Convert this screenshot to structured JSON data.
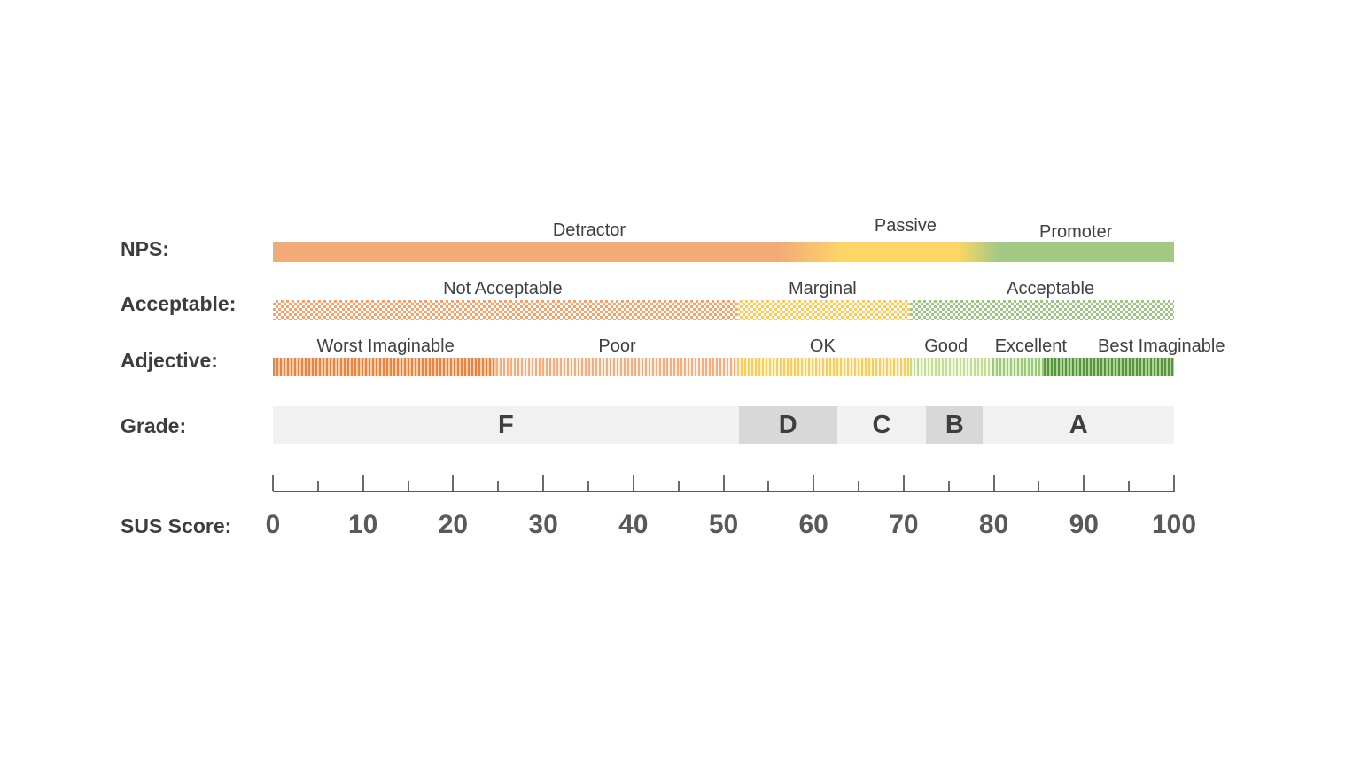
{
  "page": {
    "background": "#ffffff",
    "label_color": "#3d3d3d",
    "band_label_color": "#404040",
    "tick_text_color": "#595959"
  },
  "axis": {
    "label": "SUS Score:",
    "min": 0,
    "max": 100,
    "minor_step": 5,
    "major_step": 10,
    "tick_labels": [
      "0",
      "10",
      "20",
      "30",
      "40",
      "50",
      "60",
      "70",
      "80",
      "90",
      "100"
    ]
  },
  "rows": [
    {
      "key": "nps",
      "label": "NPS:",
      "type": "gradient",
      "gradient_stops": [
        {
          "color": "#F3AA79",
          "at": 0
        },
        {
          "color": "#F3AA79",
          "at": 56
        },
        {
          "color": "#FCD766",
          "at": 63.5
        },
        {
          "color": "#FCD766",
          "at": 76
        },
        {
          "color": "#A2C983",
          "at": 80.5
        },
        {
          "color": "#A2C983",
          "at": 100
        }
      ],
      "bands": [
        {
          "label": "Detractor",
          "from": 0,
          "to": 60,
          "label_at": 35.1,
          "dy": 0
        },
        {
          "label": "Passive",
          "from": 60,
          "to": 78,
          "label_at": 70.2,
          "dy": -5
        },
        {
          "label": "Promoter",
          "from": 78,
          "to": 100,
          "label_at": 89.1,
          "dy": 2
        }
      ]
    },
    {
      "key": "acceptable",
      "label": "Acceptable:",
      "type": "checker",
      "bands": [
        {
          "label": "Not Acceptable",
          "from": 0,
          "to": 51.5,
          "color": "#F0A470",
          "label_at": 25.5,
          "dy": 0
        },
        {
          "label": "Marginal",
          "from": 51.5,
          "to": 70.7,
          "color": "#FACB58",
          "label_at": 61,
          "dy": 0
        },
        {
          "label": "Acceptable",
          "from": 70.7,
          "to": 100,
          "color": "#9DC583",
          "label_at": 86.3,
          "dy": 0
        }
      ]
    },
    {
      "key": "adjective",
      "label": "Adjective:",
      "type": "stripes",
      "bands": [
        {
          "label": "Worst Imaginable",
          "from": 0,
          "to": 24.8,
          "c1": "#E58445",
          "c2": "#F8CDA9",
          "label_at": 12.5,
          "dy": 0
        },
        {
          "label": "Poor",
          "from": 24.8,
          "to": 51.5,
          "c1": "#F2AE7E",
          "c2": "#FDF0E5",
          "label_at": 38.2,
          "dy": 0
        },
        {
          "label": "OK",
          "from": 51.5,
          "to": 70.7,
          "c1": "#FACC59",
          "c2": "#FEF4D4",
          "label_at": 61,
          "dy": 0
        },
        {
          "label": "Good",
          "from": 70.7,
          "to": 79.8,
          "c1": "#C3DC92",
          "c2": "#F1F7E2",
          "label_at": 74.7,
          "dy": 0
        },
        {
          "label": "Excellent",
          "from": 79.8,
          "to": 85.5,
          "c1": "#9BC977",
          "c2": "#E2F0D2",
          "label_at": 84.1,
          "dy": 0
        },
        {
          "label": "Best Imaginable",
          "from": 85.5,
          "to": 100,
          "c1": "#55953F",
          "c2": "#AFD296",
          "label_at": 98.6,
          "dy": 0
        }
      ]
    },
    {
      "key": "grade",
      "label": "Grade:",
      "type": "blocks",
      "bands": [
        {
          "label": "F",
          "from": 0,
          "to": 51.7,
          "color": "#F1F1F1"
        },
        {
          "label": "D",
          "from": 51.7,
          "to": 62.6,
          "color": "#D8D8D8"
        },
        {
          "label": "C",
          "from": 62.6,
          "to": 72.5,
          "color": "#F1F1F1"
        },
        {
          "label": "B",
          "from": 72.5,
          "to": 78.8,
          "color": "#D8D8D8"
        },
        {
          "label": "A",
          "from": 78.8,
          "to": 100,
          "color": "#F1F1F1"
        }
      ]
    }
  ],
  "chart_data": {
    "type": "bar",
    "orientation": "horizontal",
    "title": "",
    "xlabel": "SUS Score:",
    "xlim": [
      0,
      100
    ],
    "xticks": [
      0,
      10,
      20,
      30,
      40,
      50,
      60,
      70,
      80,
      90,
      100
    ],
    "minor_tick_step": 5,
    "series": [
      {
        "name": "NPS",
        "bands": [
          {
            "label": "Detractor",
            "range": [
              0,
              60
            ]
          },
          {
            "label": "Passive",
            "range": [
              60,
              78
            ]
          },
          {
            "label": "Promoter",
            "range": [
              78,
              100
            ]
          }
        ]
      },
      {
        "name": "Acceptable",
        "bands": [
          {
            "label": "Not Acceptable",
            "range": [
              0,
              51.5
            ]
          },
          {
            "label": "Marginal",
            "range": [
              51.5,
              70.7
            ]
          },
          {
            "label": "Acceptable",
            "range": [
              70.7,
              100
            ]
          }
        ]
      },
      {
        "name": "Adjective",
        "bands": [
          {
            "label": "Worst Imaginable",
            "range": [
              0,
              24.8
            ]
          },
          {
            "label": "Poor",
            "range": [
              24.8,
              51.5
            ]
          },
          {
            "label": "OK",
            "range": [
              51.5,
              70.7
            ]
          },
          {
            "label": "Good",
            "range": [
              70.7,
              79.8
            ]
          },
          {
            "label": "Excellent",
            "range": [
              79.8,
              85.5
            ]
          },
          {
            "label": "Best Imaginable",
            "range": [
              85.5,
              100
            ]
          }
        ]
      },
      {
        "name": "Grade",
        "bands": [
          {
            "label": "F",
            "range": [
              0,
              51.7
            ]
          },
          {
            "label": "D",
            "range": [
              51.7,
              62.6
            ]
          },
          {
            "label": "C",
            "range": [
              62.6,
              72.5
            ]
          },
          {
            "label": "B",
            "range": [
              72.5,
              78.8
            ]
          },
          {
            "label": "A",
            "range": [
              78.8,
              100
            ]
          }
        ]
      }
    ]
  }
}
